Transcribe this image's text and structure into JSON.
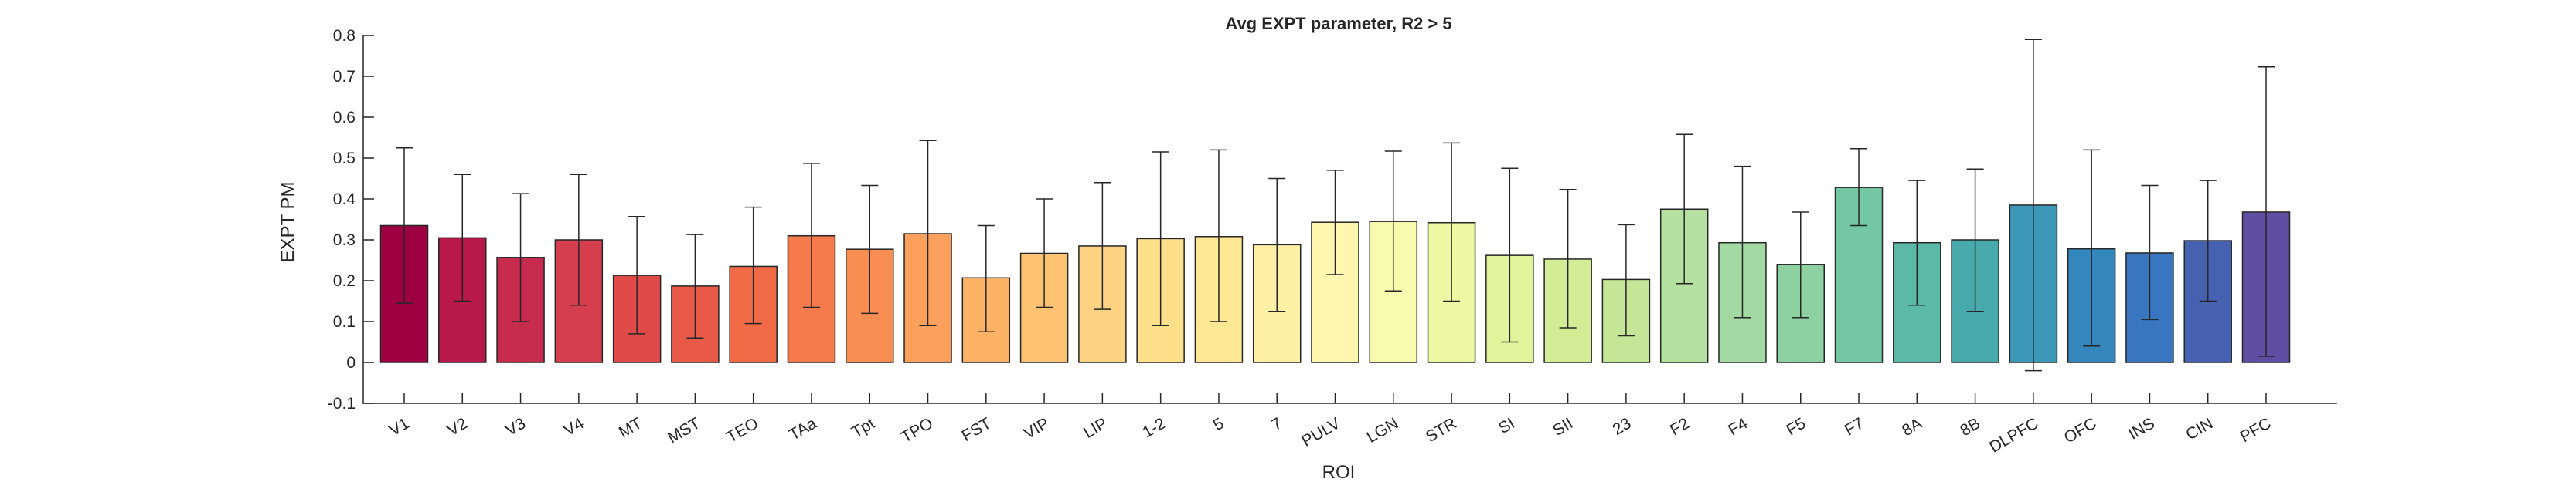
{
  "chart_data": {
    "type": "bar",
    "title": "Avg EXPT parameter, R2 > 5",
    "xlabel": "ROI",
    "ylabel": "EXPT PM",
    "ylim": [
      -0.1,
      0.8
    ],
    "yticks": [
      "-0.1",
      "0",
      "0.1",
      "0.2",
      "0.3",
      "0.4",
      "0.5",
      "0.6",
      "0.7",
      "0.8"
    ],
    "grid": false,
    "categories": [
      "V1",
      "V2",
      "V3",
      "V4",
      "MT",
      "MST",
      "TEO",
      "TAa",
      "Tpt",
      "TPO",
      "FST",
      "VIP",
      "LIP",
      "1-2",
      "5",
      "7",
      "PULV",
      "LGN",
      "STR",
      "SI",
      "SII",
      "23",
      "F2",
      "F4",
      "F5",
      "F7",
      "8A",
      "8B",
      "DLPFC",
      "OFC",
      "INS",
      "CIN",
      "PFC"
    ],
    "values": [
      0.335,
      0.305,
      0.257,
      0.3,
      0.213,
      0.187,
      0.235,
      0.31,
      0.277,
      0.315,
      0.207,
      0.267,
      0.285,
      0.303,
      0.308,
      0.288,
      0.343,
      0.345,
      0.342,
      0.262,
      0.253,
      0.203,
      0.375,
      0.293,
      0.24,
      0.428,
      0.293,
      0.3,
      0.385,
      0.278,
      0.268,
      0.298,
      0.368
    ],
    "err_low": [
      0.145,
      0.15,
      0.1,
      0.14,
      0.07,
      0.06,
      0.095,
      0.135,
      0.12,
      0.09,
      0.075,
      0.135,
      0.13,
      0.09,
      0.1,
      0.125,
      0.215,
      0.175,
      0.15,
      0.05,
      0.085,
      0.065,
      0.193,
      0.11,
      0.11,
      0.335,
      0.14,
      0.125,
      -0.02,
      0.04,
      0.105,
      0.15,
      0.015
    ],
    "err_high": [
      0.525,
      0.46,
      0.413,
      0.46,
      0.357,
      0.313,
      0.38,
      0.487,
      0.433,
      0.543,
      0.335,
      0.4,
      0.44,
      0.515,
      0.52,
      0.45,
      0.47,
      0.517,
      0.537,
      0.475,
      0.423,
      0.337,
      0.558,
      0.48,
      0.368,
      0.523,
      0.445,
      0.473,
      0.79,
      0.52,
      0.433,
      0.445,
      0.723
    ],
    "colors": [
      "#9e0142",
      "#b8194a",
      "#c72c4e",
      "#d53e4f",
      "#e04b4a",
      "#e85a47",
      "#f06a45",
      "#f67b4c",
      "#f98e52",
      "#fca05d",
      "#fdb366",
      "#fdc373",
      "#fdd283",
      "#fee08b",
      "#fee896",
      "#fef0a5",
      "#fff6b0",
      "#f8faae",
      "#eef8a2",
      "#e2f39c",
      "#d3ec96",
      "#c5e696",
      "#b5e1a0",
      "#a3d9a2",
      "#8dd1a3",
      "#73c7a4",
      "#5cb9a7",
      "#48aaab",
      "#3c98b6",
      "#3387bd",
      "#3a75c0",
      "#4561b0",
      "#5e4fa2"
    ]
  }
}
